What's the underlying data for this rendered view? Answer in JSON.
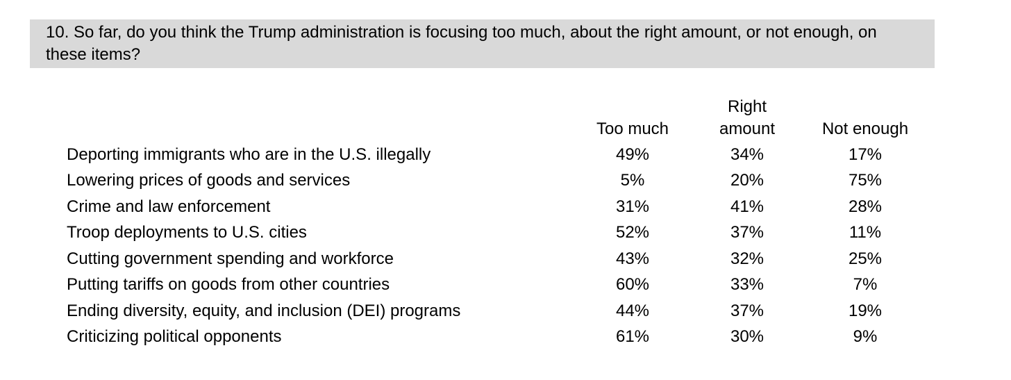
{
  "question": {
    "text": "10. So far, do you think the Trump administration is focusing too much, about the right amount, or not enough, on these items?"
  },
  "table": {
    "headers": {
      "too_much": "Too much",
      "right_amount_line1": "Right",
      "right_amount_line2": "amount",
      "not_enough": "Not enough"
    },
    "rows": [
      {
        "label": "Deporting immigrants who are in the U.S. illegally",
        "too_much": "49%",
        "right_amount": "34%",
        "not_enough": "17%"
      },
      {
        "label": "Lowering prices of goods and services",
        "too_much": "5%",
        "right_amount": "20%",
        "not_enough": "75%"
      },
      {
        "label": "Crime and law enforcement",
        "too_much": "31%",
        "right_amount": "41%",
        "not_enough": "28%"
      },
      {
        "label": "Troop deployments to U.S. cities",
        "too_much": "52%",
        "right_amount": "37%",
        "not_enough": "11%"
      },
      {
        "label": "Cutting government spending and workforce",
        "too_much": "43%",
        "right_amount": "32%",
        "not_enough": "25%"
      },
      {
        "label": "Putting tariffs on goods from other countries",
        "too_much": "60%",
        "right_amount": "33%",
        "not_enough": "7%"
      },
      {
        "label": "Ending diversity, equity, and inclusion (DEI) programs",
        "too_much": "44%",
        "right_amount": "37%",
        "not_enough": "19%"
      },
      {
        "label": "Criticizing political opponents",
        "too_much": "61%",
        "right_amount": "30%",
        "not_enough": "9%"
      }
    ]
  },
  "chart_data": {
    "type": "table",
    "title": "10. So far, do you think the Trump administration is focusing too much, about the right amount, or not enough, on these items?",
    "categories": [
      "Deporting immigrants who are in the U.S. illegally",
      "Lowering prices of goods and services",
      "Crime and law enforcement",
      "Troop deployments to U.S. cities",
      "Cutting government spending and workforce",
      "Putting tariffs on goods from other countries",
      "Ending diversity, equity, and inclusion (DEI) programs",
      "Criticizing political opponents"
    ],
    "series": [
      {
        "name": "Too much",
        "values": [
          49,
          5,
          31,
          52,
          43,
          60,
          44,
          61
        ]
      },
      {
        "name": "Right amount",
        "values": [
          34,
          20,
          41,
          37,
          32,
          33,
          37,
          30
        ]
      },
      {
        "name": "Not enough",
        "values": [
          17,
          75,
          28,
          11,
          25,
          7,
          19,
          9
        ]
      }
    ],
    "value_unit": "%"
  },
  "colors": {
    "question_highlight": "#d9d9d9",
    "text": "#000000",
    "background": "#ffffff"
  }
}
